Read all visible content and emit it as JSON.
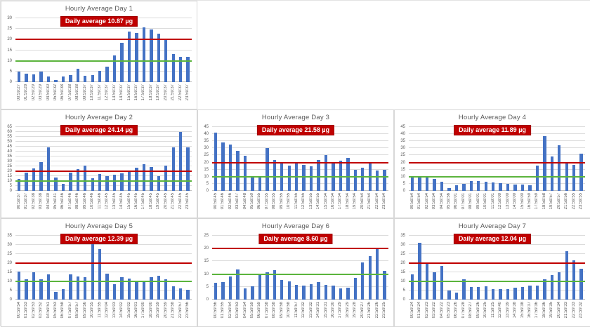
{
  "colors": {
    "bar": "#4472c4",
    "red_line": "#c00000",
    "green_line": "#5bb43c",
    "badge_bg": "#c00000",
    "badge_text": "#ffffff",
    "title_text": "#595959",
    "gridline": "#dcdcdc"
  },
  "unit": "µg",
  "chart_data": [
    {
      "type": "bar",
      "title": "Hourly Average Day 1",
      "badge_label": "Daily average 10.87 µg",
      "daily_average": 10.87,
      "xlabel": "",
      "ylabel": "",
      "ylim": [
        0,
        30
      ],
      "y_step": 5,
      "grid": true,
      "red_line_value": 20,
      "green_line_value": 10,
      "x_labels": [
        "00:59:27",
        "01:59:28",
        "02:59:29",
        "03:59:29",
        "04:59:30",
        "05:59:32",
        "06:59:38",
        "07:59:38",
        "08:59:38",
        "09:59:37",
        "10:59:37",
        "11:59:37",
        "12:59:37",
        "13:59:37",
        "14:59:37",
        "15:59:37",
        "16:59:37",
        "17:59:37",
        "18:59:37",
        "19:59:37",
        "20:59:37",
        "21:59:37",
        "22:59:37",
        "23:59:37"
      ],
      "values": [
        5.1,
        3.9,
        3.7,
        5.0,
        2.8,
        0.9,
        2.7,
        3.3,
        6.4,
        3.0,
        3.4,
        5.4,
        7.3,
        12.4,
        18.4,
        23.6,
        23.1,
        25.8,
        24.7,
        22.9,
        19.7,
        13.3,
        12.0,
        11.8
      ]
    },
    {
      "type": "bar",
      "title": "Hourly Average Day 2",
      "badge_label": "Daily average 24.14 µg",
      "daily_average": 24.14,
      "xlabel": "",
      "ylabel": "",
      "ylim": [
        0,
        65
      ],
      "y_step": 5,
      "grid": true,
      "red_line_value": 20,
      "green_line_value": 10,
      "x_labels": [
        "00:59:37",
        "01:59:37",
        "02:59:38",
        "03:59:38",
        "04:59:39",
        "05:59:41",
        "06:59:46",
        "07:59:46",
        "08:59:46",
        "09:59:46",
        "10:59:46",
        "11:59:46",
        "12:59:45",
        "13:59:45",
        "14:59:45",
        "15:59:45",
        "16:59:45",
        "17:59:45",
        "18:59:45",
        "19:59:45",
        "20:59:45",
        "21:59:45",
        "22:59:45",
        "23:59:45"
      ],
      "values": [
        12.0,
        18.5,
        23.0,
        29.5,
        44.0,
        13.5,
        7.5,
        18.5,
        22.0,
        25.5,
        13.0,
        17.5,
        15.0,
        16.5,
        18.0,
        20.0,
        23.5,
        27.0,
        24.0,
        15.0,
        26.0,
        44.0,
        60.0,
        44.0
      ]
    },
    {
      "type": "bar",
      "title": "Hourly Average Day 3",
      "badge_label": "Daily average 21.58 µg",
      "daily_average": 21.58,
      "xlabel": "",
      "ylabel": "",
      "ylim": [
        0,
        45
      ],
      "y_step": 5,
      "grid": true,
      "red_line_value": 20,
      "green_line_value": 10,
      "x_labels": [
        "00:59:45",
        "01:59:46",
        "02:59:46",
        "03:59:47",
        "04:59:48",
        "05:59:50",
        "06:59:55",
        "07:59:55",
        "08:59:55",
        "09:59:55",
        "10:59:55",
        "11:59:55",
        "12:59:55",
        "13:59:55",
        "14:59:55",
        "15:59:54",
        "16:59:54",
        "17:59:54",
        "18:59:54",
        "19:59:54",
        "20:59:54",
        "21:59:54",
        "22:59:54",
        "23:59:54"
      ],
      "values": [
        41.0,
        34.0,
        32.5,
        28.0,
        24.5,
        9.5,
        9.5,
        30.0,
        22.0,
        19.8,
        17.8,
        19.5,
        18.2,
        17.5,
        22.0,
        25.3,
        20.5,
        21.5,
        23.3,
        15.0,
        16.3,
        19.2,
        14.3,
        15.0
      ]
    },
    {
      "type": "bar",
      "title": "Hourly Average Day 4",
      "badge_label": "Daily average 11.89 µg",
      "daily_average": 11.89,
      "xlabel": "",
      "ylabel": "",
      "ylim": [
        0,
        45
      ],
      "y_step": 5,
      "grid": true,
      "red_line_value": 20,
      "green_line_value": 10,
      "x_labels": [
        "00:59:54",
        "01:59:54",
        "02:59:54",
        "03:59:54",
        "04:59:54",
        "05:59:56",
        "06:59:01",
        "07:59:01",
        "08:59:01",
        "09:59:01",
        "10:59:01",
        "11:59:01",
        "12:59:00",
        "13:59:00",
        "14:59:00",
        "15:59:00",
        "16:59:59",
        "17:59:59",
        "18:59:58",
        "19:59:57",
        "20:59:57",
        "21:59:56",
        "22:59:55",
        "23:59:55"
      ],
      "values": [
        10.4,
        9.6,
        10.4,
        8.5,
        6.5,
        2.2,
        4.0,
        5.0,
        7.0,
        6.8,
        6.3,
        5.8,
        5.4,
        5.0,
        4.5,
        4.3,
        4.2,
        18.0,
        38.4,
        24.4,
        32.0,
        19.9,
        18.4,
        26.0
      ]
    },
    {
      "type": "bar",
      "title": "Hourly Average Day 5",
      "badge_label": "Daily average 12.39 µg",
      "daily_average": 12.39,
      "xlabel": "",
      "ylabel": "",
      "ylim": [
        0,
        35
      ],
      "y_step": 5,
      "grid": true,
      "red_line_value": 20,
      "green_line_value": 10,
      "x_labels": [
        "00:59:54",
        "01:59:53",
        "02:59:53",
        "03:59:52",
        "04:59:51",
        "05:59:53",
        "06:59:58",
        "07:59:57",
        "08:59:57",
        "09:59:56",
        "10:59:55",
        "11:59:55",
        "12:59:04",
        "13:59:03",
        "14:59:02",
        "15:59:02",
        "16:59:01",
        "17:59:00",
        "18:59:00",
        "19:59:59",
        "20:59:59",
        "21:59:58",
        "22:59:57",
        "23:59:56"
      ],
      "values": [
        15.5,
        11.3,
        15.0,
        11.1,
        13.9,
        4.3,
        5.7,
        13.7,
        12.7,
        12.4,
        31.5,
        27.8,
        14.3,
        8.6,
        12.2,
        11.6,
        9.7,
        9.7,
        12.2,
        13.1,
        11.3,
        7.5,
        6.3,
        5.2
      ]
    },
    {
      "type": "bar",
      "title": "Hourly Average Day 6",
      "badge_label": "Daily average 8.60 µg",
      "daily_average": 8.6,
      "xlabel": "",
      "ylabel": "",
      "ylim": [
        0,
        25
      ],
      "y_step": 5,
      "grid": true,
      "red_line_value": 20,
      "green_line_value": 10,
      "x_labels": [
        "00:59:56",
        "01:59:55",
        "02:59:54",
        "03:59:53",
        "04:59:54",
        "05:59:59",
        "06:59:59",
        "07:59:58",
        "08:59:58",
        "09:59:58",
        "10:59:58",
        "11:59:57",
        "12:59:32",
        "13:59:32",
        "14:59:31",
        "15:59:31",
        "16:59:30",
        "17:59:29",
        "18:59:29",
        "19:59:28",
        "20:59:27",
        "21:59:26",
        "22:59:26",
        "23:59:25"
      ],
      "values": [
        6.6,
        6.9,
        9.0,
        11.7,
        4.3,
        5.1,
        9.8,
        10.8,
        11.6,
        7.7,
        7.2,
        5.8,
        5.4,
        6.0,
        7.0,
        5.9,
        5.6,
        4.4,
        4.6,
        8.5,
        14.6,
        16.9,
        19.7,
        11.3
      ]
    },
    {
      "type": "bar",
      "title": "Hourly Average Day 7",
      "badge_label": "Daily average 12.04 µg",
      "daily_average": 12.04,
      "xlabel": "",
      "ylabel": "",
      "ylim": [
        0,
        35
      ],
      "y_step": 5,
      "grid": true,
      "red_line_value": 20,
      "green_line_value": 10,
      "x_labels": [
        "00:59:24",
        "01:59:24",
        "02:59:23",
        "03:59:22",
        "04:59:22",
        "05:59:23",
        "06:59:26",
        "07:59:28",
        "08:59:27",
        "09:59:26",
        "10:59:25",
        "11:59:25",
        "12:59:40",
        "13:59:39",
        "14:59:38",
        "15:59:38",
        "16:59:37",
        "17:59:36",
        "18:59:36",
        "19:59:35",
        "20:59:34",
        "21:59:33",
        "22:59:33",
        "23:59:32"
      ],
      "values": [
        13.7,
        31.3,
        19.9,
        15.0,
        18.5,
        5.0,
        4.0,
        11.0,
        6.9,
        6.8,
        7.4,
        5.9,
        5.9,
        5.6,
        6.4,
        6.9,
        7.7,
        7.6,
        11.2,
        13.3,
        14.9,
        26.4,
        21.4,
        17.0
      ]
    }
  ]
}
